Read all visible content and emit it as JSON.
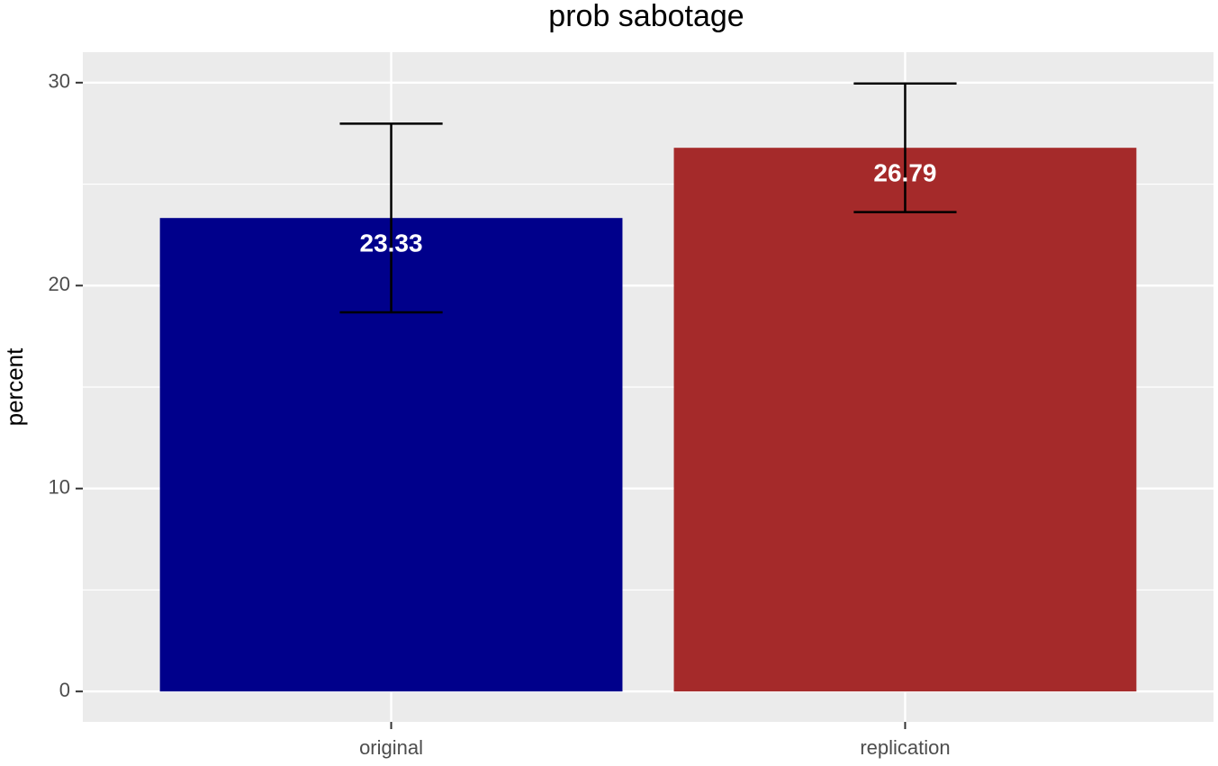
{
  "chart_data": {
    "type": "bar",
    "title": "prob sabotage",
    "y_label": "percent",
    "categories": [
      "original",
      "replication"
    ],
    "values": [
      23.33,
      26.79
    ],
    "errors": [
      4.65,
      3.17
    ],
    "colors": [
      "#00008b",
      "#a52a2a"
    ],
    "ylim": [
      -1.5,
      31.5
    ],
    "yticks": [
      0,
      10,
      20,
      30
    ],
    "y_minor_ticks": [
      5,
      15,
      25
    ],
    "grid": true
  }
}
